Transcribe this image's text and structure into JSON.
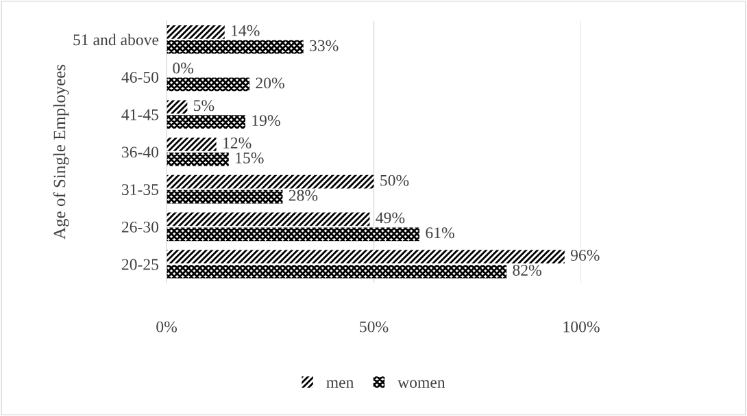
{
  "chart_data": {
    "type": "bar",
    "orientation": "horizontal",
    "ylabel": "Age of Single Employees",
    "categories": [
      "51 and above",
      "46-50",
      "41-45",
      "36-40",
      "31-35",
      "26-30",
      "20-25"
    ],
    "series": [
      {
        "name": "men",
        "color": "#000000",
        "values": [
          14,
          0,
          5,
          12,
          50,
          49,
          96
        ],
        "value_labels": [
          "14%",
          "0%",
          "5%",
          "12%",
          "50%",
          "49%",
          "96%"
        ]
      },
      {
        "name": "women",
        "color": "#000000",
        "values": [
          33,
          20,
          19,
          15,
          28,
          61,
          82
        ],
        "value_labels": [
          "33%",
          "20%",
          "19%",
          "15%",
          "28%",
          "61%",
          "82%"
        ]
      }
    ],
    "xlim": [
      0,
      100
    ],
    "xticks": [
      {
        "value": 0,
        "label": "0%"
      },
      {
        "value": 50,
        "label": "50%"
      },
      {
        "value": 100,
        "label": "100%"
      }
    ],
    "grid": "x",
    "legend": "bottom"
  }
}
